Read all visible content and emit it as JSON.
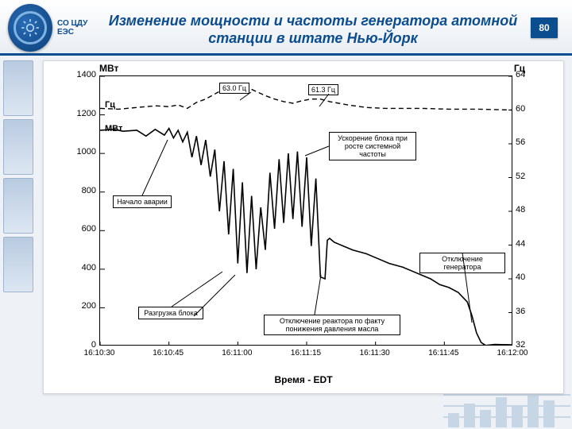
{
  "header": {
    "logo_text": "СО\nЦДУ\nЕЭС",
    "title": "Изменение мощности и частоты генератора\nатомной станции в штате Нью-Йорк",
    "page_number": "80"
  },
  "chart": {
    "type": "dual-axis-line",
    "x_axis": {
      "title": "Время - EDT",
      "ticks": [
        "16:10:30",
        "16:10:45",
        "16:11:00",
        "16:11:15",
        "16:11:30",
        "16:11:45",
        "16:12:00"
      ]
    },
    "y_left": {
      "title": "МВт",
      "ticks": [
        0,
        200,
        400,
        600,
        800,
        1000,
        1200,
        1400
      ],
      "min": 0,
      "max": 1400
    },
    "y_right": {
      "title": "Гц",
      "ticks": [
        32,
        36,
        40,
        44,
        48,
        52,
        56,
        60,
        64
      ],
      "min": 32,
      "max": 64
    },
    "label_mw": "МВт",
    "label_hz": "Гц",
    "series_power": {
      "color": "#000000",
      "width": 1.6,
      "points": [
        [
          0,
          1120
        ],
        [
          3,
          1125
        ],
        [
          5,
          1115
        ],
        [
          8,
          1120
        ],
        [
          10,
          1090
        ],
        [
          12,
          1125
        ],
        [
          14,
          1095
        ],
        [
          15,
          1130
        ],
        [
          16,
          1080
        ],
        [
          17,
          1120
        ],
        [
          18,
          1060
        ],
        [
          19,
          1110
        ],
        [
          20,
          980
        ],
        [
          21,
          1090
        ],
        [
          22,
          940
        ],
        [
          23,
          1070
        ],
        [
          24,
          880
        ],
        [
          25,
          1020
        ],
        [
          26,
          700
        ],
        [
          27,
          960
        ],
        [
          28,
          580
        ],
        [
          29,
          920
        ],
        [
          30,
          430
        ],
        [
          31,
          850
        ],
        [
          32,
          380
        ],
        [
          33,
          780
        ],
        [
          34,
          400
        ],
        [
          35,
          720
        ],
        [
          36,
          500
        ],
        [
          37,
          900
        ],
        [
          38,
          610
        ],
        [
          39,
          970
        ],
        [
          40,
          640
        ],
        [
          41,
          1000
        ],
        [
          42,
          660
        ],
        [
          43,
          1010
        ],
        [
          44,
          620
        ],
        [
          45,
          980
        ],
        [
          46,
          520
        ],
        [
          47,
          870
        ],
        [
          48,
          360
        ],
        [
          49,
          350
        ],
        [
          49.5,
          550
        ],
        [
          50,
          560
        ],
        [
          51,
          540
        ],
        [
          52,
          530
        ],
        [
          53,
          520
        ],
        [
          55,
          500
        ],
        [
          58,
          480
        ],
        [
          60,
          460
        ],
        [
          63,
          430
        ],
        [
          66,
          410
        ],
        [
          68,
          390
        ],
        [
          70,
          370
        ],
        [
          72,
          350
        ],
        [
          74,
          320
        ],
        [
          76,
          305
        ],
        [
          78,
          280
        ],
        [
          80,
          230
        ],
        [
          81,
          160
        ],
        [
          82,
          70
        ],
        [
          83,
          20
        ],
        [
          84,
          5
        ],
        [
          86,
          10
        ],
        [
          90,
          8
        ]
      ]
    },
    "series_freq": {
      "color": "#000000",
      "width": 1.4,
      "dash": "6 4",
      "points": [
        [
          0,
          60.2
        ],
        [
          4,
          60.1
        ],
        [
          8,
          60.3
        ],
        [
          12,
          60.5
        ],
        [
          15,
          60.4
        ],
        [
          17,
          60.6
        ],
        [
          19,
          60.2
        ],
        [
          21,
          60.9
        ],
        [
          23,
          61.3
        ],
        [
          25,
          61.9
        ],
        [
          27,
          62.5
        ],
        [
          29,
          62.9
        ],
        [
          30,
          63.0
        ],
        [
          32,
          62.7
        ],
        [
          34,
          62.2
        ],
        [
          36,
          61.7
        ],
        [
          38,
          61.3
        ],
        [
          40,
          61.0
        ],
        [
          42,
          60.8
        ],
        [
          44,
          61.1
        ],
        [
          46,
          61.3
        ],
        [
          48,
          61.3
        ],
        [
          50,
          61.0
        ],
        [
          54,
          60.6
        ],
        [
          58,
          60.3
        ],
        [
          62,
          60.2
        ],
        [
          66,
          60.2
        ],
        [
          70,
          60.2
        ],
        [
          76,
          60.1
        ],
        [
          82,
          60.1
        ],
        [
          90,
          60.0
        ]
      ]
    },
    "annotations": {
      "peak1": "63.0 Гц",
      "peak2": "61.3 Гц",
      "start_fault": "Начало аварии",
      "unload": "Разгрузка блока",
      "accel": "Ускорение блока при росте системной частоты",
      "reactor_trip": "Отключение реактора по факту понижения давления масла",
      "gen_trip": "Отключение генератора"
    },
    "colors": {
      "background": "#ffffff",
      "grid": "#000000",
      "axis": "#000000"
    },
    "font_sizes": {
      "ticks": 11,
      "titles": 12,
      "ann": 9
    }
  }
}
